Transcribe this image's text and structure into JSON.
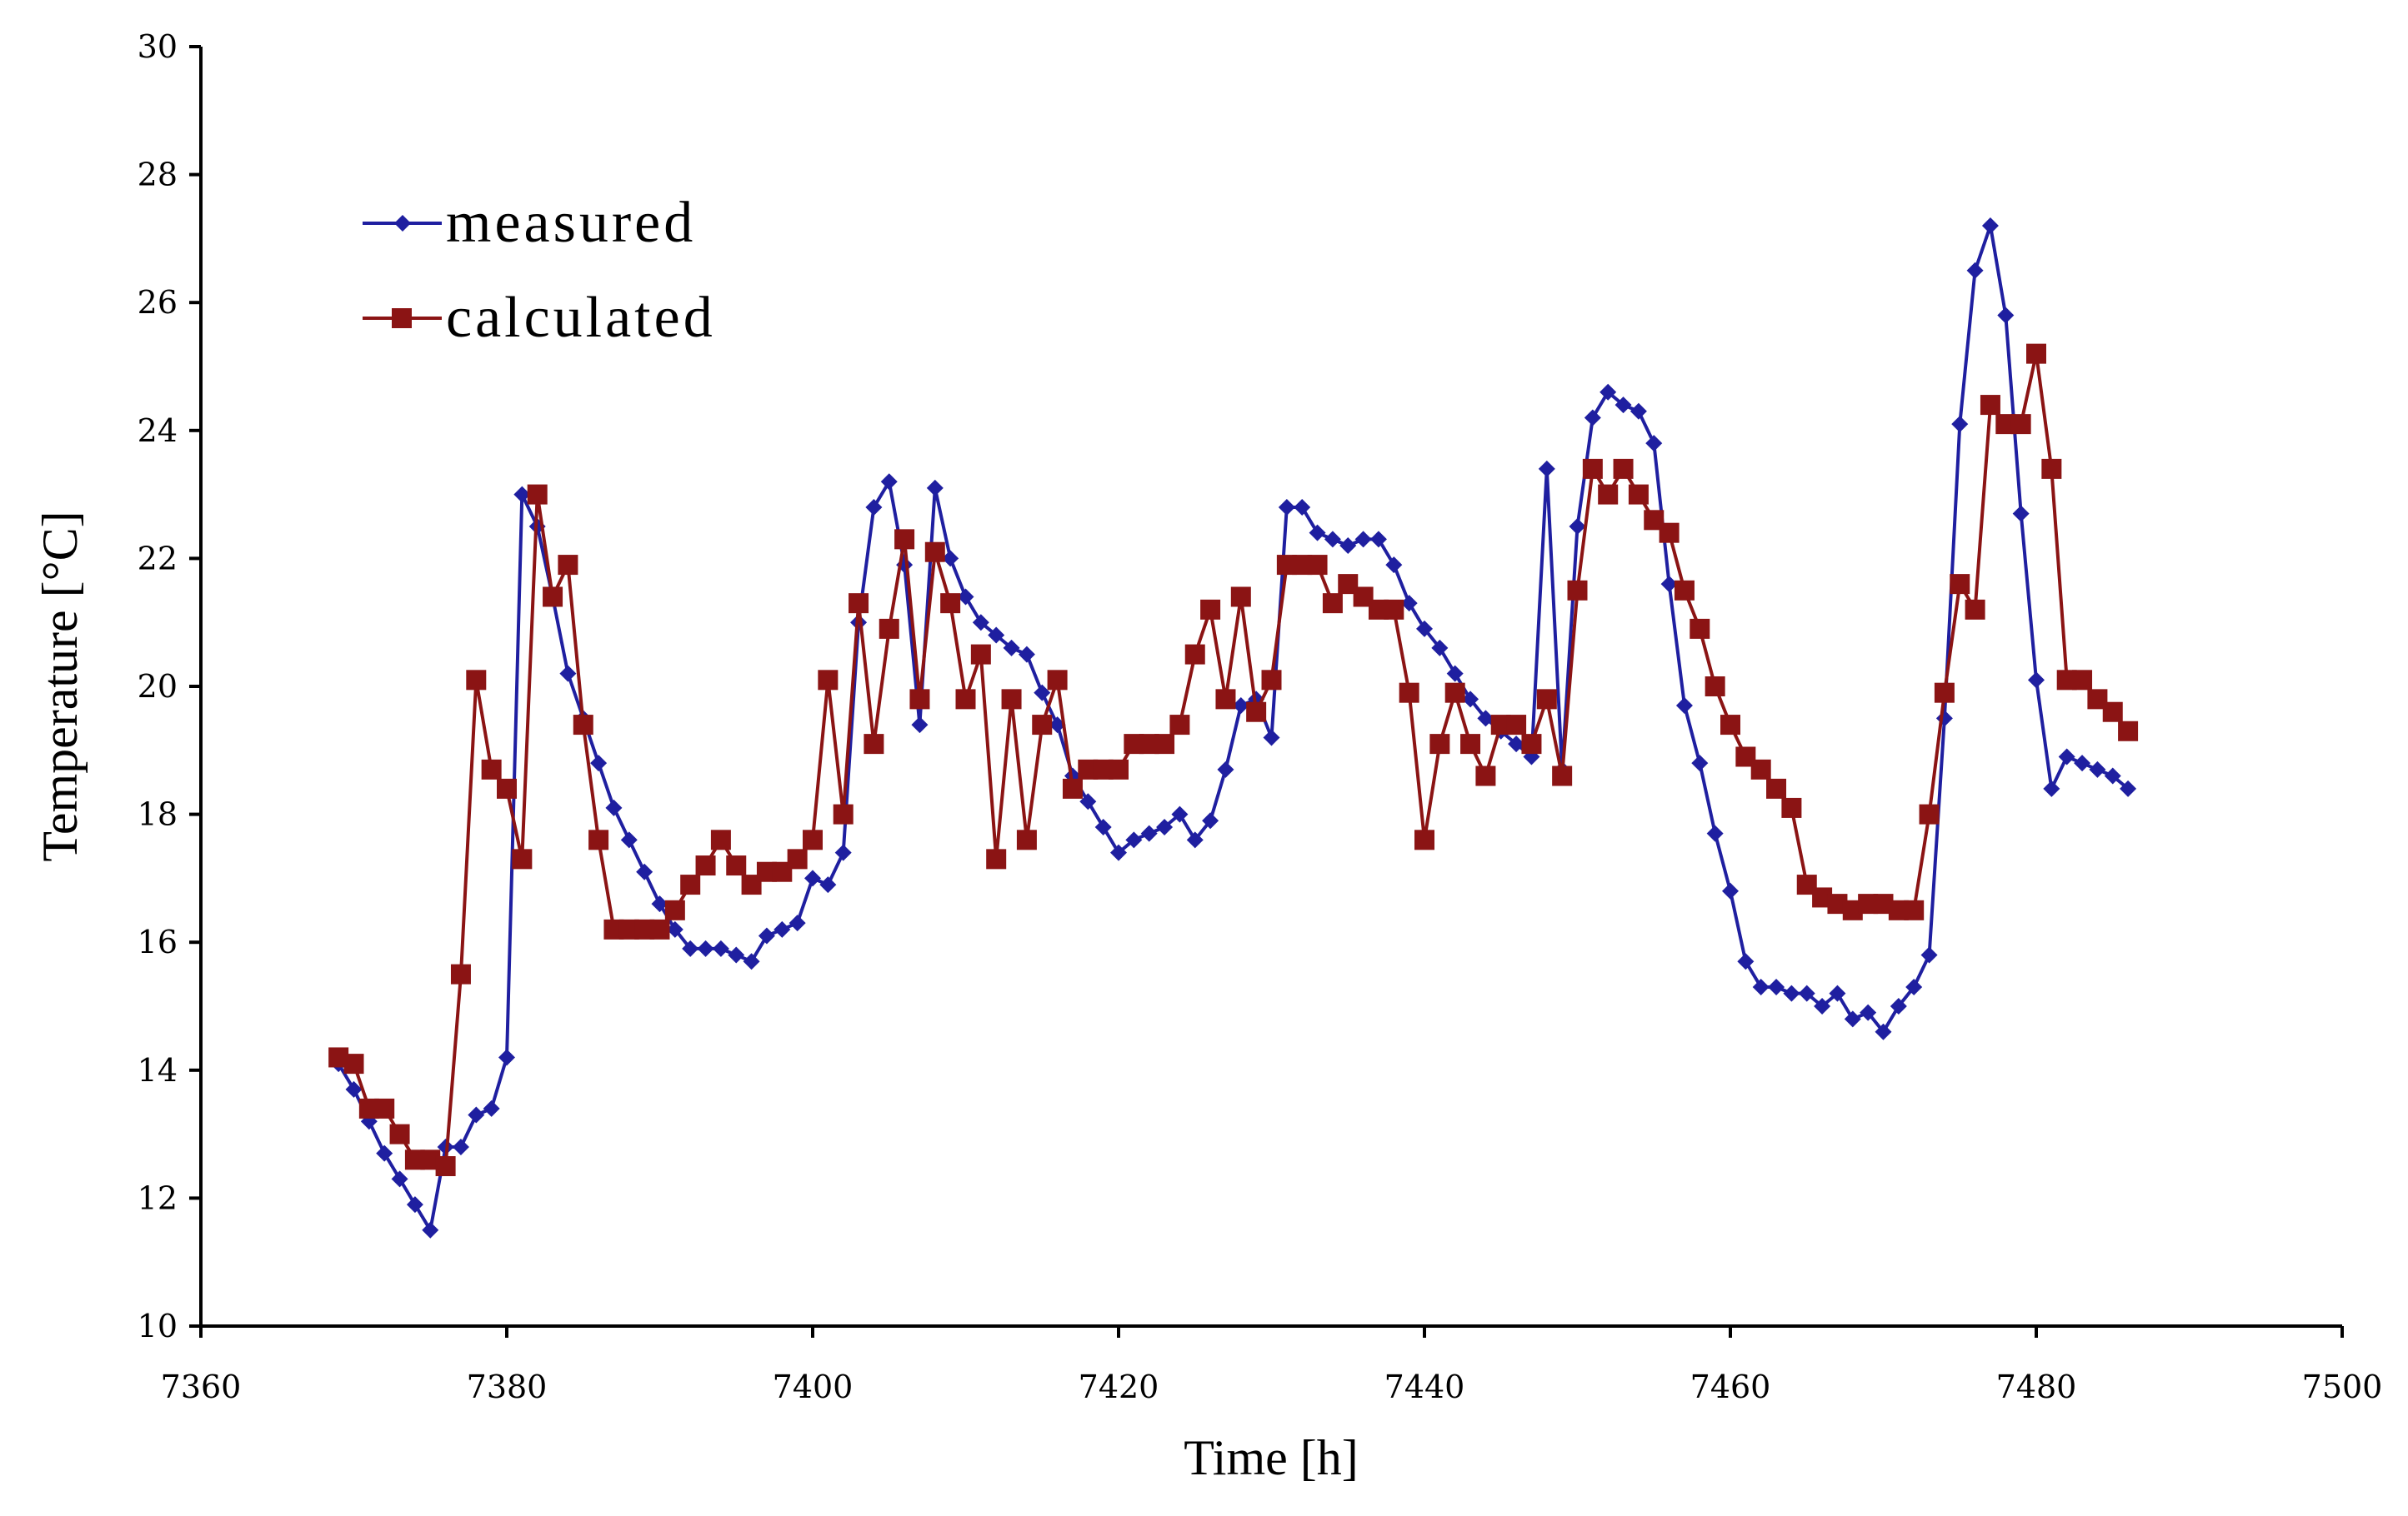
{
  "chart_data": {
    "type": "line",
    "xlabel": "Time [h]",
    "ylabel": "Temperature [°C]",
    "xlim": [
      7360,
      7500
    ],
    "ylim": [
      10,
      30
    ],
    "xticks": [
      7360,
      7380,
      7400,
      7420,
      7440,
      7460,
      7480,
      7500
    ],
    "yticks": [
      10,
      12,
      14,
      16,
      18,
      20,
      22,
      24,
      26,
      28,
      30
    ],
    "xtick_labels": [
      "7360",
      "7380",
      "7400",
      "7420",
      "7440",
      "7460",
      "7480",
      "7500"
    ],
    "ytick_labels": [
      "10",
      "12",
      "14",
      "16",
      "18",
      "20",
      "22",
      "24",
      "26",
      "28",
      "30"
    ],
    "grid": false,
    "legend_position": "top-left",
    "series": [
      {
        "name": "measured",
        "color": "#1f1fa0",
        "marker": "diamond",
        "x": [
          7369,
          7370,
          7371,
          7372,
          7373,
          7374,
          7375,
          7376,
          7377,
          7378,
          7379,
          7380,
          7381,
          7382,
          7383,
          7384,
          7385,
          7386,
          7387,
          7388,
          7389,
          7390,
          7391,
          7392,
          7393,
          7394,
          7395,
          7396,
          7397,
          7398,
          7399,
          7400,
          7401,
          7402,
          7403,
          7404,
          7405,
          7406,
          7407,
          7408,
          7409,
          7410,
          7411,
          7412,
          7413,
          7414,
          7415,
          7416,
          7417,
          7418,
          7419,
          7420,
          7421,
          7422,
          7423,
          7424,
          7425,
          7426,
          7427,
          7428,
          7429,
          7430,
          7431,
          7432,
          7433,
          7434,
          7435,
          7436,
          7437,
          7438,
          7439,
          7440,
          7441,
          7442,
          7443,
          7444,
          7445,
          7446,
          7447,
          7448,
          7449,
          7450,
          7451,
          7452,
          7453,
          7454,
          7455,
          7456,
          7457,
          7458,
          7459,
          7460,
          7461,
          7462,
          7463,
          7464,
          7465,
          7466,
          7467,
          7468,
          7469,
          7470,
          7471,
          7472,
          7473,
          7474,
          7475,
          7476,
          7477,
          7478,
          7479,
          7480,
          7481,
          7482,
          7483,
          7484,
          7485,
          7486
        ],
        "y": [
          14.1,
          13.7,
          13.2,
          12.7,
          12.3,
          11.9,
          11.5,
          12.8,
          12.8,
          13.3,
          13.4,
          14.2,
          23.0,
          22.5,
          21.4,
          20.2,
          19.5,
          18.8,
          18.1,
          17.6,
          17.1,
          16.6,
          16.2,
          15.9,
          15.9,
          15.9,
          15.8,
          15.7,
          16.1,
          16.2,
          16.3,
          17.0,
          16.9,
          17.4,
          21.0,
          22.8,
          23.2,
          21.9,
          19.4,
          23.1,
          22.0,
          21.4,
          21.0,
          20.8,
          20.6,
          20.5,
          19.9,
          19.4,
          18.6,
          18.2,
          17.8,
          17.4,
          17.6,
          17.7,
          17.8,
          18.0,
          17.6,
          17.9,
          18.7,
          19.7,
          19.8,
          19.2,
          22.8,
          22.8,
          22.4,
          22.3,
          22.2,
          22.3,
          22.3,
          21.9,
          21.3,
          20.9,
          20.6,
          20.2,
          19.8,
          19.5,
          19.3,
          19.1,
          18.9,
          23.4,
          18.7,
          22.5,
          24.2,
          24.6,
          24.4,
          24.3,
          23.8,
          21.6,
          19.7,
          18.8,
          17.7,
          16.8,
          15.7,
          15.3,
          15.3,
          15.2,
          15.2,
          15.0,
          15.2,
          14.8,
          14.9,
          14.6,
          15.0,
          15.3,
          15.8,
          19.5,
          24.1,
          26.5,
          27.2,
          25.8,
          22.7,
          20.1,
          18.4,
          18.9,
          18.8,
          18.7,
          18.6,
          18.4
        ]
      },
      {
        "name": "calculated",
        "color": "#8b1414",
        "marker": "square",
        "x": [
          7369,
          7370,
          7371,
          7372,
          7373,
          7374,
          7375,
          7376,
          7377,
          7378,
          7379,
          7380,
          7381,
          7382,
          7383,
          7384,
          7385,
          7386,
          7387,
          7388,
          7389,
          7390,
          7391,
          7392,
          7393,
          7394,
          7395,
          7396,
          7397,
          7398,
          7399,
          7400,
          7401,
          7402,
          7403,
          7404,
          7405,
          7406,
          7407,
          7408,
          7409,
          7410,
          7411,
          7412,
          7413,
          7414,
          7415,
          7416,
          7417,
          7418,
          7419,
          7420,
          7421,
          7422,
          7423,
          7424,
          7425,
          7426,
          7427,
          7428,
          7429,
          7430,
          7431,
          7432,
          7433,
          7434,
          7435,
          7436,
          7437,
          7438,
          7439,
          7440,
          7441,
          7442,
          7443,
          7444,
          7445,
          7446,
          7447,
          7448,
          7449,
          7450,
          7451,
          7452,
          7453,
          7454,
          7455,
          7456,
          7457,
          7458,
          7459,
          7460,
          7461,
          7462,
          7463,
          7464,
          7465,
          7466,
          7467,
          7468,
          7469,
          7470,
          7471,
          7472,
          7473,
          7474,
          7475,
          7476,
          7477,
          7478,
          7479,
          7480,
          7481,
          7482,
          7483,
          7484,
          7485,
          7486
        ],
        "y": [
          14.2,
          14.1,
          13.4,
          13.4,
          13.0,
          12.6,
          12.6,
          12.5,
          15.5,
          20.1,
          18.7,
          18.4,
          17.3,
          23.0,
          21.4,
          21.9,
          19.4,
          17.6,
          16.2,
          16.2,
          16.2,
          16.2,
          16.5,
          16.9,
          17.2,
          17.6,
          17.2,
          16.9,
          17.1,
          17.1,
          17.3,
          17.6,
          20.1,
          18.0,
          21.3,
          19.1,
          20.9,
          22.3,
          19.8,
          22.1,
          21.3,
          19.8,
          20.5,
          17.3,
          19.8,
          17.6,
          19.4,
          20.1,
          18.4,
          18.7,
          18.7,
          18.7,
          19.1,
          19.1,
          19.1,
          19.4,
          20.5,
          21.2,
          19.8,
          21.4,
          19.6,
          20.1,
          21.9,
          21.9,
          21.9,
          21.3,
          21.6,
          21.4,
          21.2,
          21.2,
          19.9,
          17.6,
          19.1,
          19.9,
          19.1,
          18.6,
          19.4,
          19.4,
          19.1,
          19.8,
          18.6,
          21.5,
          23.4,
          23.0,
          23.4,
          23.0,
          22.6,
          22.4,
          21.5,
          20.9,
          20.0,
          19.4,
          18.9,
          18.7,
          18.4,
          18.1,
          16.9,
          16.7,
          16.6,
          16.5,
          16.6,
          16.6,
          16.5,
          16.5,
          18.0,
          19.9,
          21.6,
          21.2,
          24.4,
          24.1,
          24.1,
          25.2,
          23.4,
          20.1,
          20.1,
          19.8,
          19.6,
          19.3
        ]
      }
    ]
  }
}
